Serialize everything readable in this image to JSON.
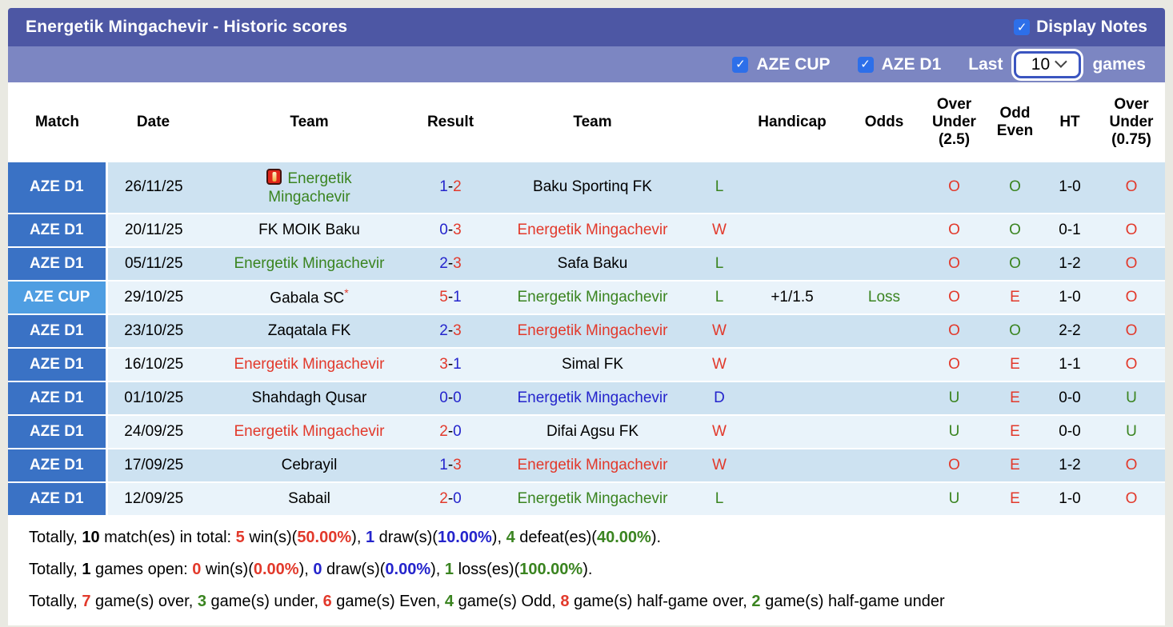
{
  "header": {
    "title": "Energetik Mingachevir - Historic scores",
    "display_notes_label": "Display Notes",
    "display_notes_checked": true
  },
  "filters": {
    "leagues": [
      {
        "label": "AZE CUP",
        "checked": true
      },
      {
        "label": "AZE D1",
        "checked": true
      }
    ],
    "last_label": "Last",
    "games_label": "games",
    "games_count": "10"
  },
  "colors": {
    "black": "#000000",
    "red": "#e2392b",
    "green": "#3a8420",
    "blue": "#2424cc",
    "title_bar": "#4d57a4",
    "filter_bar": "#7c86c2",
    "league_d1": "#3a72c5",
    "league_cup": "#4f9ee2",
    "row_dark": "#cde2f1",
    "row_light": "#e9f3fa",
    "checkbox": "#2d6fe9"
  },
  "table": {
    "headers": [
      "Match",
      "Date",
      "Team",
      "Result",
      "Team",
      "",
      "Handicap",
      "Odds",
      "Over\nUnder\n(2.5)",
      "Odd\nEven",
      "HT",
      "Over\nUnder\n(0.75)"
    ],
    "rows": [
      {
        "league": "AZE D1",
        "cup": false,
        "date": "26/11/25",
        "home": {
          "name": "Energetik\nMingachevir",
          "color": "g",
          "icon": true
        },
        "score": [
          "1",
          "2"
        ],
        "score_colors": [
          "b",
          "r"
        ],
        "away": {
          "name": "Baku Sportinq FK",
          "color": "k"
        },
        "wld": {
          "t": "L",
          "c": "g"
        },
        "handicap": "",
        "odds": {
          "t": "",
          "c": "g"
        },
        "ou25": {
          "t": "O",
          "c": "r"
        },
        "odd_even": {
          "t": "O",
          "c": "g"
        },
        "ht": "1-0",
        "ou075": {
          "t": "O",
          "c": "r"
        }
      },
      {
        "league": "AZE D1",
        "cup": false,
        "date": "20/11/25",
        "home": {
          "name": "FK MOIK Baku",
          "color": "k"
        },
        "score": [
          "0",
          "3"
        ],
        "score_colors": [
          "b",
          "r"
        ],
        "away": {
          "name": "Energetik Mingachevir",
          "color": "r"
        },
        "wld": {
          "t": "W",
          "c": "r"
        },
        "handicap": "",
        "odds": {
          "t": "",
          "c": "g"
        },
        "ou25": {
          "t": "O",
          "c": "r"
        },
        "odd_even": {
          "t": "O",
          "c": "g"
        },
        "ht": "0-1",
        "ou075": {
          "t": "O",
          "c": "r"
        }
      },
      {
        "league": "AZE D1",
        "cup": false,
        "date": "05/11/25",
        "home": {
          "name": "Energetik Mingachevir",
          "color": "g"
        },
        "score": [
          "2",
          "3"
        ],
        "score_colors": [
          "b",
          "r"
        ],
        "away": {
          "name": "Safa Baku",
          "color": "k"
        },
        "wld": {
          "t": "L",
          "c": "g"
        },
        "handicap": "",
        "odds": {
          "t": "",
          "c": "g"
        },
        "ou25": {
          "t": "O",
          "c": "r"
        },
        "odd_even": {
          "t": "O",
          "c": "g"
        },
        "ht": "1-2",
        "ou075": {
          "t": "O",
          "c": "r"
        }
      },
      {
        "league": "AZE CUP",
        "cup": true,
        "date": "29/10/25",
        "home": {
          "name": "Gabala SC",
          "color": "k",
          "star": true
        },
        "score": [
          "5",
          "1"
        ],
        "score_colors": [
          "r",
          "b"
        ],
        "away": {
          "name": "Energetik Mingachevir",
          "color": "g"
        },
        "wld": {
          "t": "L",
          "c": "g"
        },
        "handicap": "+1/1.5",
        "odds": {
          "t": "Loss",
          "c": "g"
        },
        "ou25": {
          "t": "O",
          "c": "r"
        },
        "odd_even": {
          "t": "E",
          "c": "r"
        },
        "ht": "1-0",
        "ou075": {
          "t": "O",
          "c": "r"
        }
      },
      {
        "league": "AZE D1",
        "cup": false,
        "date": "23/10/25",
        "home": {
          "name": "Zaqatala FK",
          "color": "k"
        },
        "score": [
          "2",
          "3"
        ],
        "score_colors": [
          "b",
          "r"
        ],
        "away": {
          "name": "Energetik Mingachevir",
          "color": "r"
        },
        "wld": {
          "t": "W",
          "c": "r"
        },
        "handicap": "",
        "odds": {
          "t": "",
          "c": "g"
        },
        "ou25": {
          "t": "O",
          "c": "r"
        },
        "odd_even": {
          "t": "O",
          "c": "g"
        },
        "ht": "2-2",
        "ou075": {
          "t": "O",
          "c": "r"
        }
      },
      {
        "league": "AZE D1",
        "cup": false,
        "date": "16/10/25",
        "home": {
          "name": "Energetik Mingachevir",
          "color": "r"
        },
        "score": [
          "3",
          "1"
        ],
        "score_colors": [
          "r",
          "b"
        ],
        "away": {
          "name": "Simal FK",
          "color": "k"
        },
        "wld": {
          "t": "W",
          "c": "r"
        },
        "handicap": "",
        "odds": {
          "t": "",
          "c": "g"
        },
        "ou25": {
          "t": "O",
          "c": "r"
        },
        "odd_even": {
          "t": "E",
          "c": "r"
        },
        "ht": "1-1",
        "ou075": {
          "t": "O",
          "c": "r"
        }
      },
      {
        "league": "AZE D1",
        "cup": false,
        "date": "01/10/25",
        "home": {
          "name": "Shahdagh Qusar",
          "color": "k"
        },
        "score": [
          "0",
          "0"
        ],
        "score_colors": [
          "b",
          "b"
        ],
        "away": {
          "name": "Energetik Mingachevir",
          "color": "b"
        },
        "wld": {
          "t": "D",
          "c": "b"
        },
        "handicap": "",
        "odds": {
          "t": "",
          "c": "g"
        },
        "ou25": {
          "t": "U",
          "c": "g"
        },
        "odd_even": {
          "t": "E",
          "c": "r"
        },
        "ht": "0-0",
        "ou075": {
          "t": "U",
          "c": "g"
        }
      },
      {
        "league": "AZE D1",
        "cup": false,
        "date": "24/09/25",
        "home": {
          "name": "Energetik Mingachevir",
          "color": "r"
        },
        "score": [
          "2",
          "0"
        ],
        "score_colors": [
          "r",
          "b"
        ],
        "away": {
          "name": "Difai Agsu FK",
          "color": "k"
        },
        "wld": {
          "t": "W",
          "c": "r"
        },
        "handicap": "",
        "odds": {
          "t": "",
          "c": "g"
        },
        "ou25": {
          "t": "U",
          "c": "g"
        },
        "odd_even": {
          "t": "E",
          "c": "r"
        },
        "ht": "0-0",
        "ou075": {
          "t": "U",
          "c": "g"
        }
      },
      {
        "league": "AZE D1",
        "cup": false,
        "date": "17/09/25",
        "home": {
          "name": "Cebrayil",
          "color": "k"
        },
        "score": [
          "1",
          "3"
        ],
        "score_colors": [
          "b",
          "r"
        ],
        "away": {
          "name": "Energetik Mingachevir",
          "color": "r"
        },
        "wld": {
          "t": "W",
          "c": "r"
        },
        "handicap": "",
        "odds": {
          "t": "",
          "c": "g"
        },
        "ou25": {
          "t": "O",
          "c": "r"
        },
        "odd_even": {
          "t": "E",
          "c": "r"
        },
        "ht": "1-2",
        "ou075": {
          "t": "O",
          "c": "r"
        }
      },
      {
        "league": "AZE D1",
        "cup": false,
        "date": "12/09/25",
        "home": {
          "name": "Sabail",
          "color": "k"
        },
        "score": [
          "2",
          "0"
        ],
        "score_colors": [
          "r",
          "b"
        ],
        "away": {
          "name": "Energetik Mingachevir",
          "color": "g"
        },
        "wld": {
          "t": "L",
          "c": "g"
        },
        "handicap": "",
        "odds": {
          "t": "",
          "c": "g"
        },
        "ou25": {
          "t": "U",
          "c": "g"
        },
        "odd_even": {
          "t": "E",
          "c": "r"
        },
        "ht": "1-0",
        "ou075": {
          "t": "O",
          "c": "r"
        }
      }
    ]
  },
  "summary": {
    "lines": [
      [
        {
          "t": "Totally, ",
          "c": "k"
        },
        {
          "t": "10",
          "c": "k",
          "b": 1
        },
        {
          "t": " match(es) in total: ",
          "c": "k"
        },
        {
          "t": "5",
          "c": "r",
          "b": 1
        },
        {
          "t": " win(s)(",
          "c": "k"
        },
        {
          "t": "50.00%",
          "c": "r",
          "b": 1
        },
        {
          "t": "), ",
          "c": "k"
        },
        {
          "t": "1",
          "c": "b",
          "b": 1
        },
        {
          "t": " draw(s)(",
          "c": "k"
        },
        {
          "t": "10.00%",
          "c": "b",
          "b": 1
        },
        {
          "t": "), ",
          "c": "k"
        },
        {
          "t": "4",
          "c": "g",
          "b": 1
        },
        {
          "t": " defeat(es)(",
          "c": "k"
        },
        {
          "t": "40.00%",
          "c": "g",
          "b": 1
        },
        {
          "t": ").",
          "c": "k"
        }
      ],
      [
        {
          "t": "Totally, ",
          "c": "k"
        },
        {
          "t": "1",
          "c": "k",
          "b": 1
        },
        {
          "t": " games open: ",
          "c": "k"
        },
        {
          "t": "0",
          "c": "r",
          "b": 1
        },
        {
          "t": " win(s)(",
          "c": "k"
        },
        {
          "t": "0.00%",
          "c": "r",
          "b": 1
        },
        {
          "t": "), ",
          "c": "k"
        },
        {
          "t": "0",
          "c": "b",
          "b": 1
        },
        {
          "t": " draw(s)(",
          "c": "k"
        },
        {
          "t": "0.00%",
          "c": "b",
          "b": 1
        },
        {
          "t": "), ",
          "c": "k"
        },
        {
          "t": "1",
          "c": "g",
          "b": 1
        },
        {
          "t": " loss(es)(",
          "c": "k"
        },
        {
          "t": "100.00%",
          "c": "g",
          "b": 1
        },
        {
          "t": ").",
          "c": "k"
        }
      ],
      [
        {
          "t": "Totally, ",
          "c": "k"
        },
        {
          "t": "7",
          "c": "r",
          "b": 1
        },
        {
          "t": " game(s) over, ",
          "c": "k"
        },
        {
          "t": "3",
          "c": "g",
          "b": 1
        },
        {
          "t": " game(s) under, ",
          "c": "k"
        },
        {
          "t": "6",
          "c": "r",
          "b": 1
        },
        {
          "t": " game(s) Even, ",
          "c": "k"
        },
        {
          "t": "4",
          "c": "g",
          "b": 1
        },
        {
          "t": " game(s) Odd, ",
          "c": "k"
        },
        {
          "t": "8",
          "c": "r",
          "b": 1
        },
        {
          "t": " game(s) half-game over, ",
          "c": "k"
        },
        {
          "t": "2",
          "c": "g",
          "b": 1
        },
        {
          "t": " game(s) half-game under",
          "c": "k"
        }
      ]
    ]
  }
}
